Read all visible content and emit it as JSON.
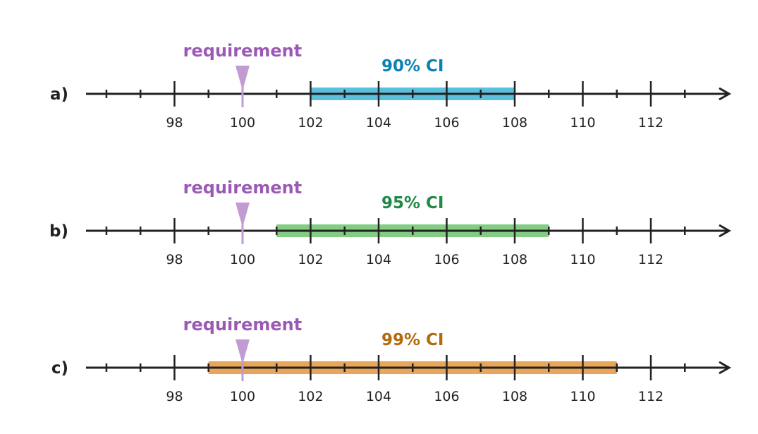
{
  "axis": {
    "min": 95.4,
    "max": 114.3,
    "major_ticks": [
      98,
      100,
      102,
      104,
      106,
      108,
      110,
      112
    ],
    "minor_step": 1,
    "minor_start": 96,
    "minor_end": 113
  },
  "requirement": {
    "value": 100,
    "label": "requirement",
    "color": "#9b59b6",
    "marker_color": "#c39bd3"
  },
  "rows": [
    {
      "label": "a)",
      "ci_label": "90% CI",
      "lower": 102,
      "upper": 108,
      "bar_color": "#5bc0de",
      "text_color": "#0a82b4"
    },
    {
      "label": "b)",
      "ci_label": "95% CI",
      "lower": 101,
      "upper": 109,
      "bar_color": "#82cd82",
      "text_color": "#1e8a46"
    },
    {
      "label": "c)",
      "ci_label": "99% CI",
      "lower": 99,
      "upper": 111,
      "bar_color": "#e8a65a",
      "text_color": "#b46a0a"
    }
  ],
  "axis_color": "#222222"
}
